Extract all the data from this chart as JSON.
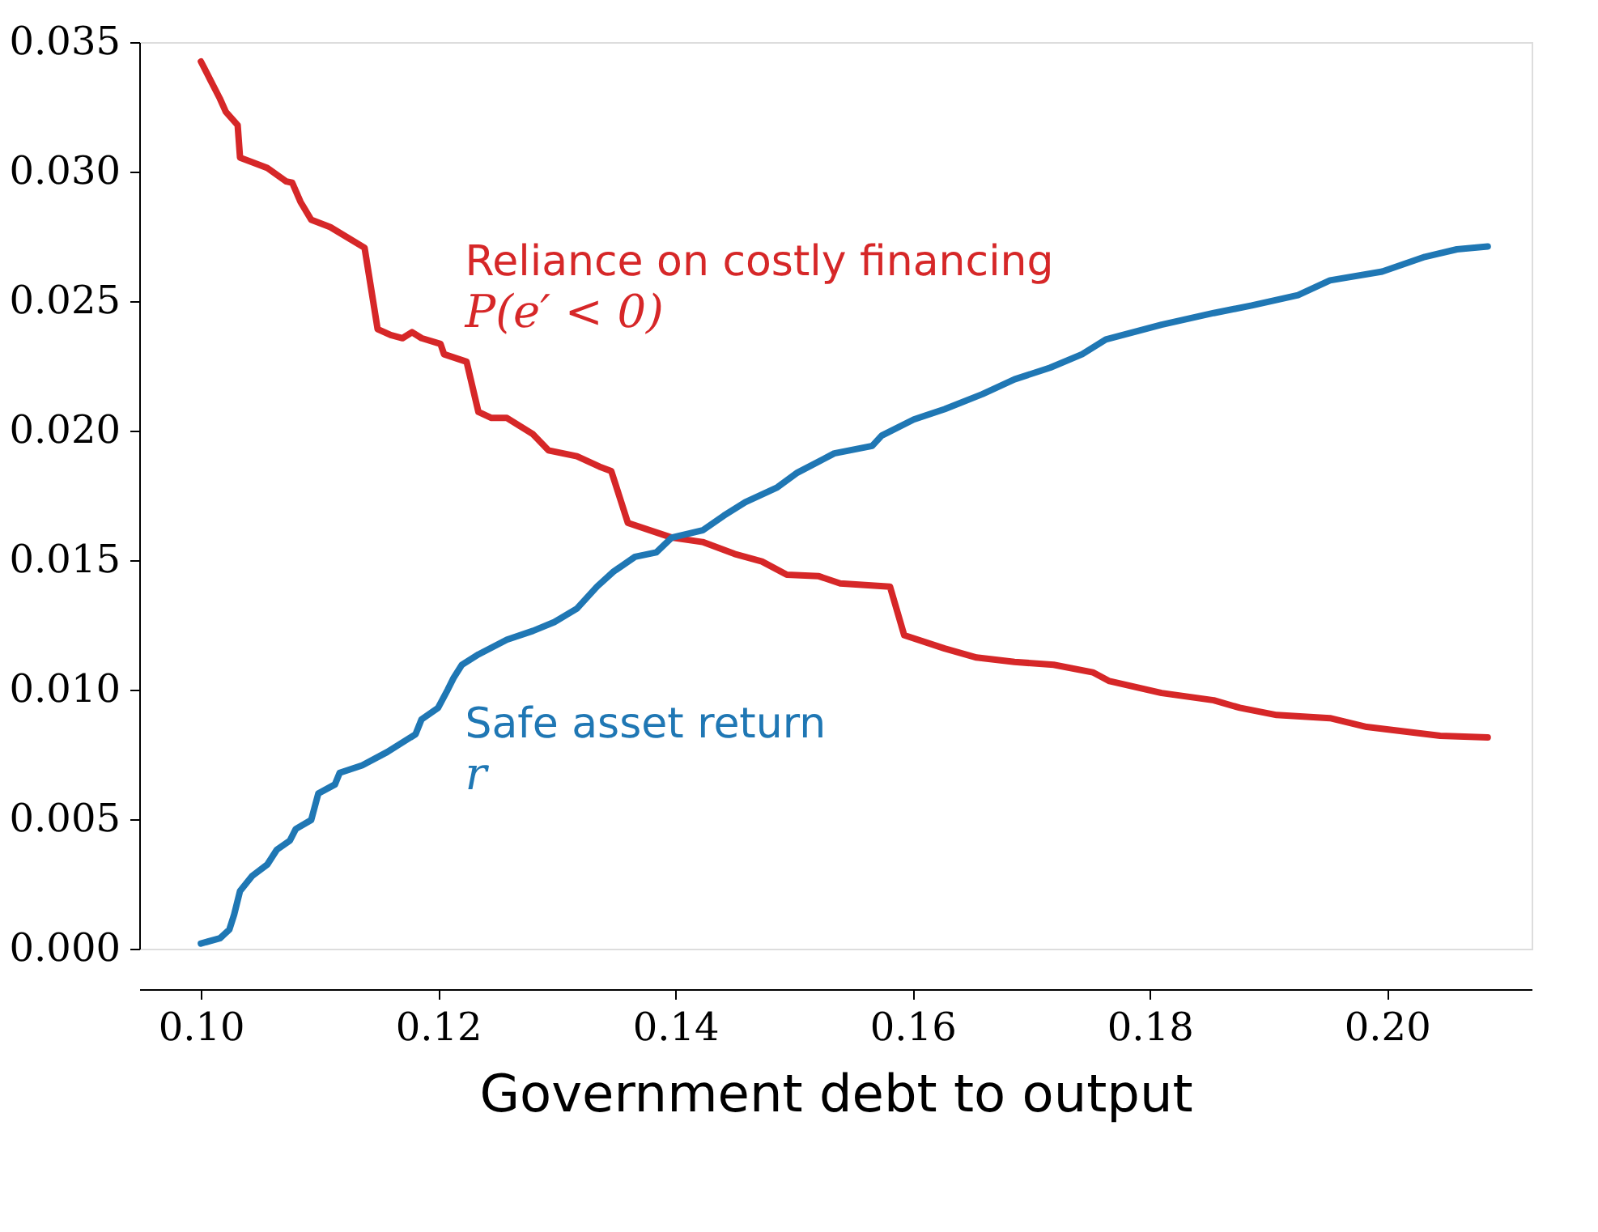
{
  "chart_data": {
    "type": "line",
    "xlabel": "Government debt to output",
    "xlim": [
      0.0948,
      0.2122
    ],
    "ylim": [
      0,
      0.035
    ],
    "xticks": [
      {
        "value": 0.1,
        "label": "0.10"
      },
      {
        "value": 0.12,
        "label": "0.12"
      },
      {
        "value": 0.14,
        "label": "0.14"
      },
      {
        "value": 0.16,
        "label": "0.16"
      },
      {
        "value": 0.18,
        "label": "0.18"
      },
      {
        "value": 0.2,
        "label": "0.20"
      }
    ],
    "yticks": [
      {
        "value": 0,
        "label": "0.000"
      },
      {
        "value": 0.005,
        "label": "0.005"
      },
      {
        "value": 0.01,
        "label": "0.010"
      },
      {
        "value": 0.015,
        "label": "0.015"
      },
      {
        "value": 0.02,
        "label": "0.020"
      },
      {
        "value": 0.025,
        "label": "0.025"
      },
      {
        "value": 0.03,
        "label": "0.030"
      },
      {
        "value": 0.035,
        "label": "0.035"
      }
    ],
    "grid": false,
    "marker": "none",
    "line_style": "solid",
    "series": [
      {
        "name": "Reliance on costly financing",
        "color": "#d62728",
        "x": [
          0.1,
          0.1016,
          0.1021,
          0.1031,
          0.1033,
          0.1043,
          0.1056,
          0.1072,
          0.1077,
          0.1084,
          0.1093,
          0.1109,
          0.1138,
          0.1149,
          0.116,
          0.117,
          0.1178,
          0.1186,
          0.1202,
          0.1205,
          0.1224,
          0.1234,
          0.1245,
          0.1258,
          0.128,
          0.1293,
          0.1317,
          0.1336,
          0.1346,
          0.136,
          0.1397,
          0.1423,
          0.145,
          0.1473,
          0.1494,
          0.1521,
          0.1539,
          0.1581,
          0.1593,
          0.1627,
          0.1654,
          0.1686,
          0.1719,
          0.1752,
          0.1766,
          0.181,
          0.1854,
          0.1876,
          0.1907,
          0.1952,
          0.1983,
          0.2045,
          0.2085
        ],
        "values": [
          0.03425,
          0.03282,
          0.03231,
          0.03179,
          0.03054,
          0.03037,
          0.03014,
          0.02962,
          0.02957,
          0.02883,
          0.02814,
          0.02786,
          0.02706,
          0.02392,
          0.02369,
          0.02357,
          0.0238,
          0.02357,
          0.02335,
          0.02295,
          0.02266,
          0.02072,
          0.02049,
          0.02049,
          0.01986,
          0.01924,
          0.01901,
          0.01861,
          0.01844,
          0.01644,
          0.01587,
          0.0157,
          0.01524,
          0.01495,
          0.01444,
          0.01438,
          0.0141,
          0.01398,
          0.0121,
          0.01159,
          0.01124,
          0.01107,
          0.01096,
          0.01067,
          0.01033,
          0.00987,
          0.00959,
          0.0093,
          0.00902,
          0.0089,
          0.00856,
          0.00822,
          0.00816
        ]
      },
      {
        "name": "Safe asset return",
        "color": "#1f77b4",
        "x": [
          0.1,
          0.1016,
          0.1024,
          0.1028,
          0.1033,
          0.1043,
          0.1056,
          0.1064,
          0.1075,
          0.108,
          0.1093,
          0.1099,
          0.1113,
          0.1117,
          0.1136,
          0.1157,
          0.1181,
          0.1186,
          0.12,
          0.1208,
          0.1213,
          0.122,
          0.1234,
          0.1258,
          0.128,
          0.1298,
          0.1317,
          0.1334,
          0.1348,
          0.1366,
          0.1384,
          0.1397,
          0.1423,
          0.1441,
          0.1459,
          0.1486,
          0.1503,
          0.1534,
          0.1566,
          0.1574,
          0.1601,
          0.1627,
          0.1659,
          0.1686,
          0.1716,
          0.1743,
          0.1763,
          0.181,
          0.1854,
          0.1886,
          0.1925,
          0.1952,
          0.1996,
          0.2032,
          0.2059,
          0.2085
        ],
        "values": [
          0.0002,
          0.0004,
          0.00074,
          0.00131,
          0.00223,
          0.0028,
          0.00325,
          0.00382,
          0.00417,
          0.00462,
          0.00497,
          0.00599,
          0.00634,
          0.00679,
          0.00708,
          0.00759,
          0.00828,
          0.00885,
          0.0093,
          0.00999,
          0.01045,
          0.01096,
          0.01136,
          0.01193,
          0.01227,
          0.01261,
          0.01313,
          0.01398,
          0.01456,
          0.01513,
          0.0153,
          0.01587,
          0.01615,
          0.01672,
          0.01724,
          0.01781,
          0.01838,
          0.01912,
          0.01941,
          0.01981,
          0.02043,
          0.02083,
          0.02141,
          0.02198,
          0.02243,
          0.02295,
          0.02352,
          0.02409,
          0.02454,
          0.02483,
          0.02523,
          0.0258,
          0.02614,
          0.02671,
          0.027,
          0.02711
        ]
      }
    ],
    "annotations": [
      "P(e′ < 0)",
      "r"
    ]
  }
}
